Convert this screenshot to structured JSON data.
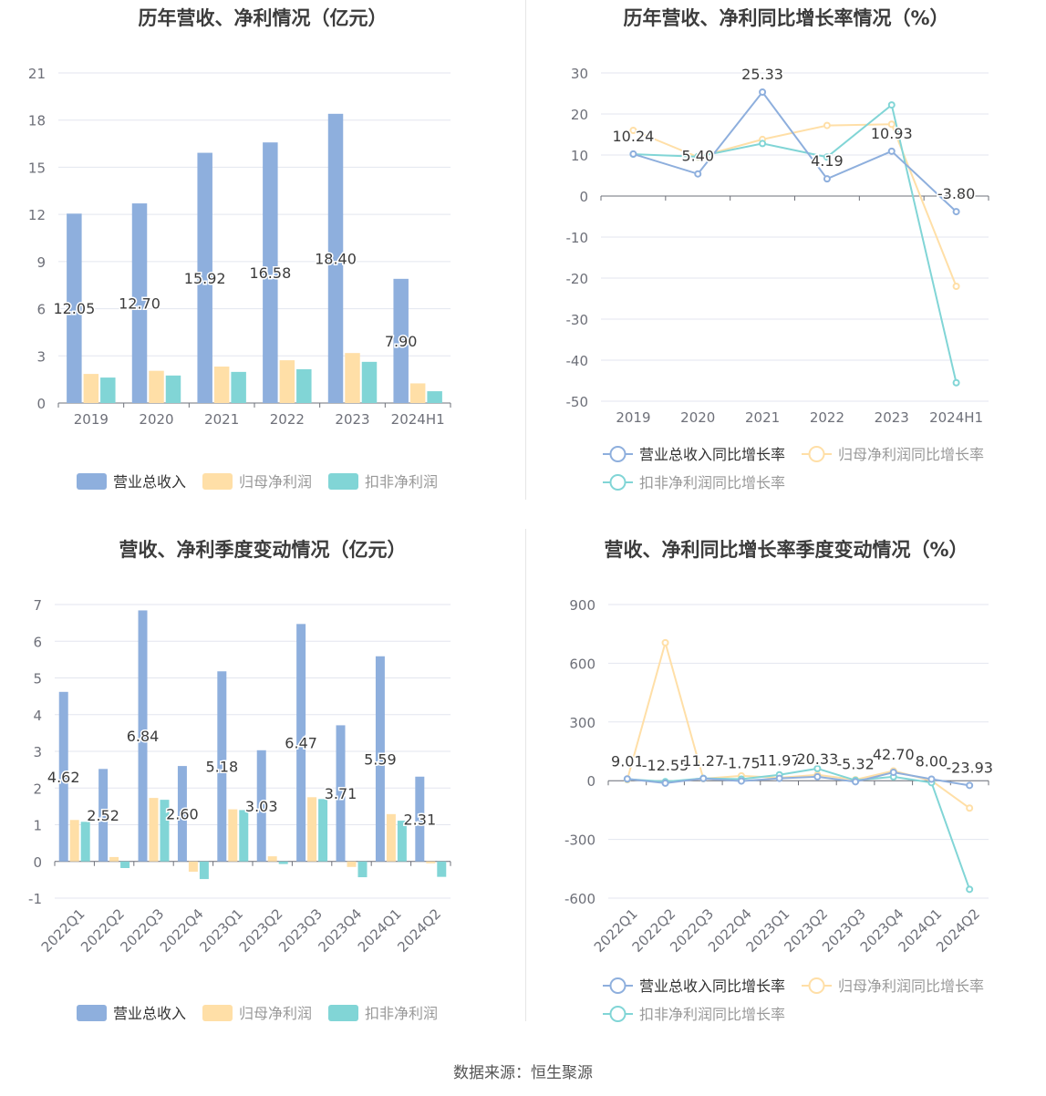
{
  "source": "数据来源：恒生聚源",
  "colors": {
    "revenue": "#8eafdd",
    "net": "#ffdfa7",
    "deducted": "#81d5d6",
    "grid": "#e3e6ef",
    "axis": "#6e7079",
    "label": "#3b3b3b"
  },
  "chart_data": [
    {
      "id": "annual-amount",
      "type": "bar",
      "title": "历年营收、净利情况（亿元）",
      "categories": [
        "2019",
        "2020",
        "2021",
        "2022",
        "2023",
        "2024H1"
      ],
      "ylim": [
        0,
        21
      ],
      "yticks": [
        0,
        3,
        6,
        9,
        12,
        15,
        18,
        21
      ],
      "grid": true,
      "legend_position": "bottom",
      "series": [
        {
          "name": "营业总收入",
          "values": [
            12.05,
            12.7,
            15.92,
            16.58,
            18.4,
            7.9
          ],
          "labels": [
            "12.05",
            "12.70",
            "15.92",
            "16.58",
            "18.40",
            "7.90"
          ]
        },
        {
          "name": "归母净利润",
          "values": [
            1.85,
            2.05,
            2.32,
            2.72,
            3.18,
            1.25
          ]
        },
        {
          "name": "扣非净利润",
          "values": [
            1.62,
            1.75,
            1.98,
            2.15,
            2.62,
            0.75
          ]
        }
      ]
    },
    {
      "id": "annual-growth",
      "type": "line",
      "title": "历年营收、净利同比增长率情况（%）",
      "categories": [
        "2019",
        "2020",
        "2021",
        "2022",
        "2023",
        "2024H1"
      ],
      "ylim": [
        -50,
        30
      ],
      "yticks": [
        -50,
        -40,
        -30,
        -20,
        -10,
        0,
        10,
        20,
        30
      ],
      "grid": true,
      "legend_position": "bottom",
      "series": [
        {
          "name": "营业总收入同比增长率",
          "values": [
            10.24,
            5.4,
            25.33,
            4.19,
            10.93,
            -3.8
          ],
          "labels": [
            "10.24",
            "5.40",
            "25.33",
            "4.19",
            "10.93",
            "-3.80"
          ]
        },
        {
          "name": "归母净利润同比增长率",
          "values": [
            16.0,
            9.5,
            13.8,
            17.2,
            17.5,
            -22.0
          ]
        },
        {
          "name": "扣非净利润同比增长率",
          "values": [
            10.2,
            9.6,
            12.8,
            9.5,
            22.2,
            -45.5
          ]
        }
      ]
    },
    {
      "id": "quarterly-amount",
      "type": "bar",
      "title": "营收、净利季度变动情况（亿元）",
      "categories": [
        "2022Q1",
        "2022Q2",
        "2022Q3",
        "2022Q4",
        "2023Q1",
        "2023Q2",
        "2023Q3",
        "2023Q4",
        "2024Q1",
        "2024Q2"
      ],
      "ylim": [
        -1,
        7
      ],
      "yticks": [
        -1,
        0,
        1,
        2,
        3,
        4,
        5,
        6,
        7
      ],
      "grid": true,
      "legend_position": "bottom",
      "series": [
        {
          "name": "营业总收入",
          "values": [
            4.62,
            2.52,
            6.84,
            2.6,
            5.18,
            3.03,
            6.47,
            3.71,
            5.59,
            2.31
          ],
          "labels": [
            "4.62",
            "2.52",
            "6.84",
            "2.60",
            "5.18",
            "3.03",
            "6.47",
            "3.71",
            "5.59",
            "2.31"
          ]
        },
        {
          "name": "归母净利润",
          "values": [
            1.13,
            0.12,
            1.73,
            -0.28,
            1.42,
            0.14,
            1.75,
            -0.15,
            1.29,
            -0.05
          ]
        },
        {
          "name": "扣非净利润",
          "values": [
            1.08,
            -0.18,
            1.68,
            -0.48,
            1.4,
            -0.07,
            1.7,
            -0.43,
            1.11,
            -0.42
          ]
        }
      ]
    },
    {
      "id": "quarterly-growth",
      "type": "line",
      "title": "营收、净利同比增长率季度变动情况（%）",
      "categories": [
        "2022Q1",
        "2022Q2",
        "2022Q3",
        "2022Q4",
        "2023Q1",
        "2023Q2",
        "2023Q3",
        "2023Q4",
        "2024Q1",
        "2024Q2"
      ],
      "ylim": [
        -600,
        900
      ],
      "yticks": [
        -600,
        -300,
        0,
        300,
        600,
        900
      ],
      "grid": true,
      "legend_position": "bottom",
      "series": [
        {
          "name": "营业总收入同比增长率",
          "values": [
            9.01,
            -12.55,
            11.27,
            -1.75,
            11.97,
            20.33,
            -5.32,
            42.7,
            8.0,
            -23.93
          ],
          "labels": [
            "9.01",
            "-12.55",
            "11.27",
            "-1.75",
            "11.97",
            "20.33",
            "-5.32",
            "42.70",
            "8.00",
            "-23.93"
          ]
        },
        {
          "name": "归母净利润同比增长率",
          "values": [
            5,
            705,
            10,
            25,
            15,
            30,
            5,
            50,
            0,
            -140
          ]
        },
        {
          "name": "扣非净利润同比增长率",
          "values": [
            8,
            -5,
            12,
            8,
            30,
            62,
            2,
            20,
            -10,
            -555
          ]
        }
      ]
    }
  ]
}
